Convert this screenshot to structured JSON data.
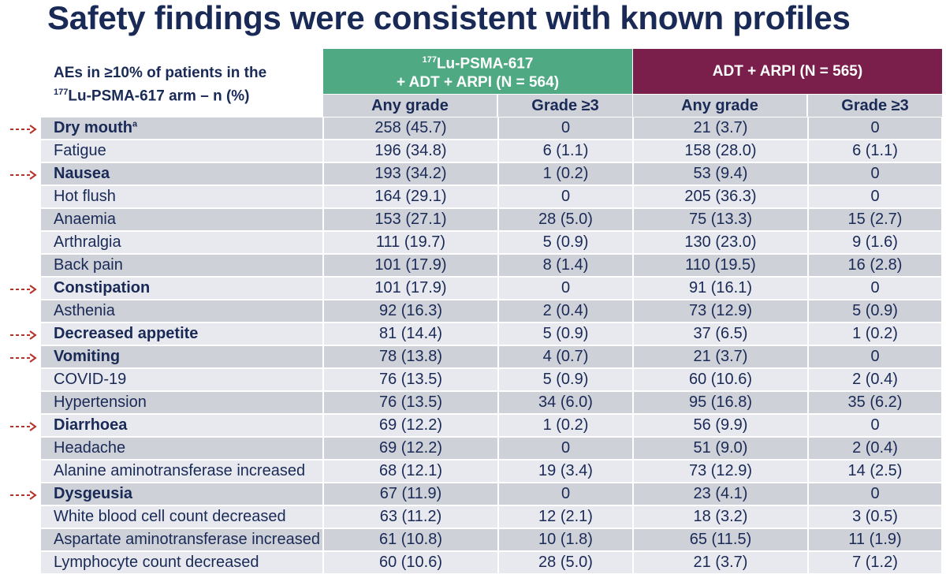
{
  "title": "Safety findings were consistent with known profiles",
  "row_header": {
    "line1": "AEs in ≥10% of patients in the",
    "line2_sup": "177",
    "line2_rest": "Lu-PSMA-617 arm – n (%)"
  },
  "colors": {
    "arm1": "#4faa84",
    "arm2": "#7a1e4c",
    "text": "#1a2a57",
    "arrow": "#b5332b"
  },
  "arm1": {
    "sup": "177",
    "line1": "Lu-PSMA-617",
    "line2": "+ ADT + ARPI (N = 564)"
  },
  "arm2": {
    "label": "ADT + ARPI (N = 565)"
  },
  "subheaders": {
    "any_grade": "Any grade",
    "grade3": "Grade ≥3"
  },
  "rows": [
    {
      "ae": "Dry mouth",
      "sup": "a",
      "highlight": true,
      "a1_any": "258 (45.7)",
      "a1_g3": "0",
      "a2_any": "21 (3.7)",
      "a2_g3": "0"
    },
    {
      "ae": "Fatigue",
      "sup": "",
      "highlight": false,
      "a1_any": "196 (34.8)",
      "a1_g3": "6 (1.1)",
      "a2_any": "158 (28.0)",
      "a2_g3": "6 (1.1)"
    },
    {
      "ae": "Nausea",
      "sup": "",
      "highlight": true,
      "a1_any": "193 (34.2)",
      "a1_g3": "1 (0.2)",
      "a2_any": "53 (9.4)",
      "a2_g3": "0"
    },
    {
      "ae": "Hot flush",
      "sup": "",
      "highlight": false,
      "a1_any": "164 (29.1)",
      "a1_g3": "0",
      "a2_any": "205 (36.3)",
      "a2_g3": "0"
    },
    {
      "ae": "Anaemia",
      "sup": "",
      "highlight": false,
      "a1_any": "153 (27.1)",
      "a1_g3": "28 (5.0)",
      "a2_any": "75 (13.3)",
      "a2_g3": "15 (2.7)"
    },
    {
      "ae": "Arthralgia",
      "sup": "",
      "highlight": false,
      "a1_any": "111 (19.7)",
      "a1_g3": "5 (0.9)",
      "a2_any": "130 (23.0)",
      "a2_g3": "9 (1.6)"
    },
    {
      "ae": "Back pain",
      "sup": "",
      "highlight": false,
      "a1_any": "101 (17.9)",
      "a1_g3": "8 (1.4)",
      "a2_any": "110 (19.5)",
      "a2_g3": "16 (2.8)"
    },
    {
      "ae": "Constipation",
      "sup": "",
      "highlight": true,
      "a1_any": "101 (17.9)",
      "a1_g3": "0",
      "a2_any": "91 (16.1)",
      "a2_g3": "0"
    },
    {
      "ae": "Asthenia",
      "sup": "",
      "highlight": false,
      "a1_any": "92 (16.3)",
      "a1_g3": "2 (0.4)",
      "a2_any": "73 (12.9)",
      "a2_g3": "5 (0.9)"
    },
    {
      "ae": "Decreased appetite",
      "sup": "",
      "highlight": true,
      "a1_any": "81 (14.4)",
      "a1_g3": "5 (0.9)",
      "a2_any": "37 (6.5)",
      "a2_g3": "1 (0.2)"
    },
    {
      "ae": "Vomiting",
      "sup": "",
      "highlight": true,
      "a1_any": "78 (13.8)",
      "a1_g3": "4 (0.7)",
      "a2_any": "21 (3.7)",
      "a2_g3": "0"
    },
    {
      "ae": "COVID-19",
      "sup": "",
      "highlight": false,
      "a1_any": "76 (13.5)",
      "a1_g3": "5 (0.9)",
      "a2_any": "60 (10.6)",
      "a2_g3": "2 (0.4)"
    },
    {
      "ae": "Hypertension",
      "sup": "",
      "highlight": false,
      "a1_any": "76 (13.5)",
      "a1_g3": "34 (6.0)",
      "a2_any": "95 (16.8)",
      "a2_g3": "35 (6.2)"
    },
    {
      "ae": "Diarrhoea",
      "sup": "",
      "highlight": true,
      "a1_any": "69 (12.2)",
      "a1_g3": "1 (0.2)",
      "a2_any": "56 (9.9)",
      "a2_g3": "0"
    },
    {
      "ae": "Headache",
      "sup": "",
      "highlight": false,
      "a1_any": "69 (12.2)",
      "a1_g3": "0",
      "a2_any": "51 (9.0)",
      "a2_g3": "2 (0.4)"
    },
    {
      "ae": "Alanine aminotransferase increased",
      "sup": "",
      "highlight": false,
      "a1_any": "68 (12.1)",
      "a1_g3": "19 (3.4)",
      "a2_any": "73 (12.9)",
      "a2_g3": "14 (2.5)"
    },
    {
      "ae": "Dysgeusia",
      "sup": "",
      "highlight": true,
      "a1_any": "67 (11.9)",
      "a1_g3": "0",
      "a2_any": "23 (4.1)",
      "a2_g3": "0"
    },
    {
      "ae": "White blood cell count decreased",
      "sup": "",
      "highlight": false,
      "a1_any": "63 (11.2)",
      "a1_g3": "12 (2.1)",
      "a2_any": "18 (3.2)",
      "a2_g3": "3 (0.5)"
    },
    {
      "ae": "Aspartate aminotransferase increased",
      "sup": "",
      "highlight": false,
      "a1_any": "61 (10.8)",
      "a1_g3": "10 (1.8)",
      "a2_any": "65 (11.5)",
      "a2_g3": "11 (1.9)"
    },
    {
      "ae": "Lymphocyte count decreased",
      "sup": "",
      "highlight": false,
      "a1_any": "60 (10.6)",
      "a1_g3": "28 (5.0)",
      "a2_any": "21 (3.7)",
      "a2_g3": "7 (1.2)"
    }
  ]
}
